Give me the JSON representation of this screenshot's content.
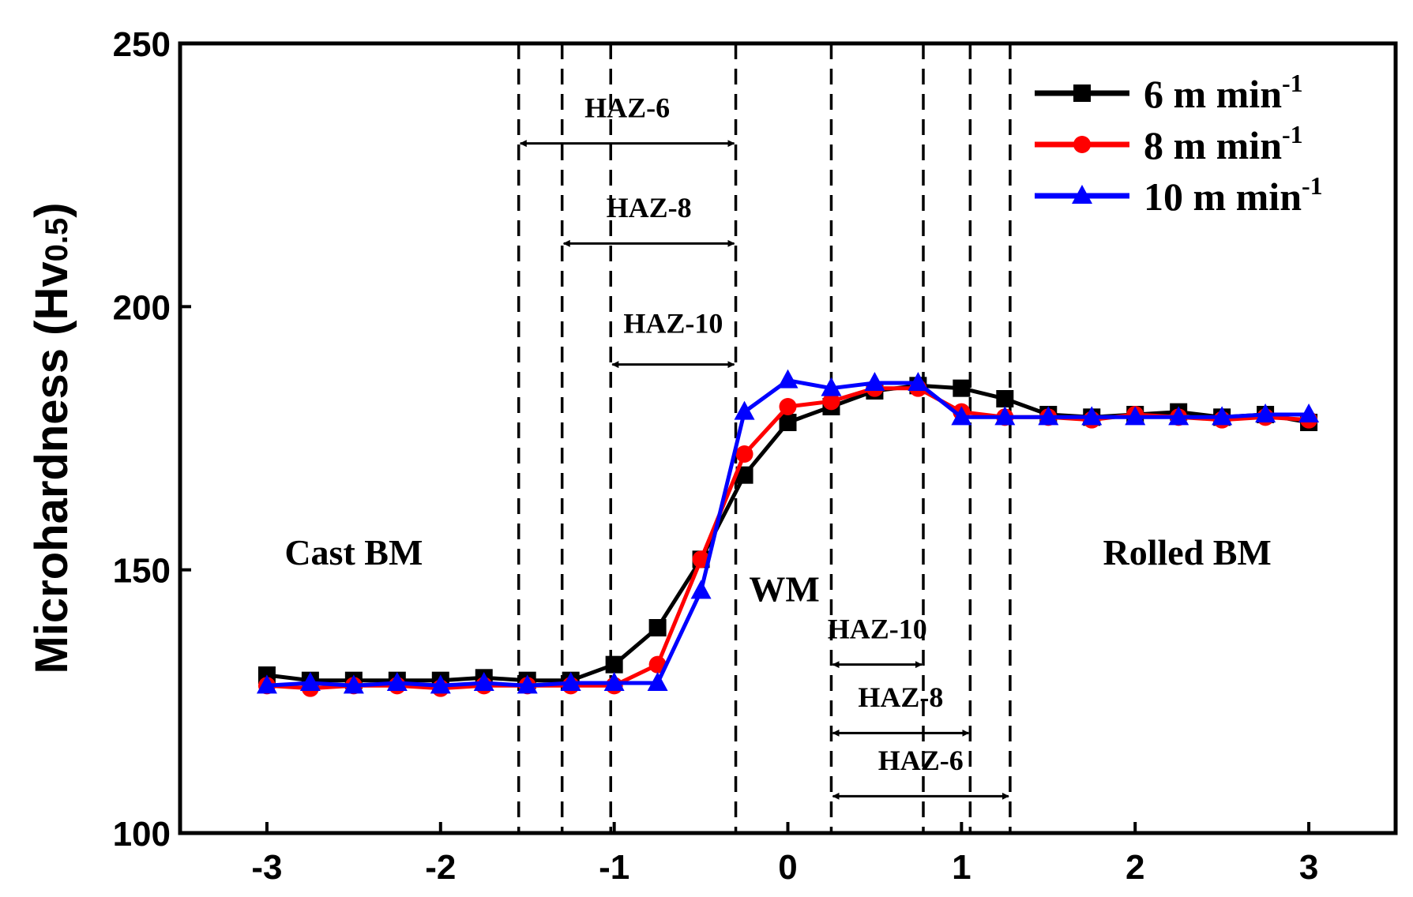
{
  "chart_data": {
    "type": "line",
    "title": "",
    "xlabel": "",
    "ylabel": "Microhardness (Hv",
    "ylabel_sub": "0.5",
    "ylabel_close": ")",
    "xlim": [
      -3.5,
      3.5
    ],
    "ylim": [
      100,
      250
    ],
    "x_ticks": [
      -3,
      -2,
      -1,
      0,
      1,
      2,
      3
    ],
    "y_ticks": [
      100,
      150,
      200,
      250
    ],
    "x_tick_labels": [
      "-3",
      "-2",
      "-1",
      "0",
      "1",
      "2",
      "3"
    ],
    "y_tick_labels": [
      "100",
      "150",
      "200",
      "250"
    ],
    "grid": false,
    "legend_position": "top-right",
    "series": [
      {
        "name": "6 m min",
        "name_sup": "-1",
        "color": "#000000",
        "marker": "square",
        "x": [
          -3,
          -2.75,
          -2.5,
          -2.25,
          -2,
          -1.75,
          -1.5,
          -1.25,
          -1,
          -0.75,
          -0.5,
          -0.25,
          0,
          0.25,
          0.5,
          0.75,
          1,
          1.25,
          1.5,
          1.75,
          2,
          2.25,
          2.5,
          2.75,
          3
        ],
        "y": [
          130,
          129,
          129,
          129,
          129,
          129.5,
          129,
          129,
          132,
          139,
          152,
          168,
          178,
          181,
          184,
          185,
          184.5,
          182.5,
          179.5,
          179,
          179.5,
          180,
          179,
          179.5,
          178
        ]
      },
      {
        "name": "8 m min",
        "name_sup": "-1",
        "color": "#ff0000",
        "marker": "circle",
        "x": [
          -3,
          -2.75,
          -2.5,
          -2.25,
          -2,
          -1.75,
          -1.5,
          -1.25,
          -1,
          -0.75,
          -0.5,
          -0.25,
          0,
          0.25,
          0.5,
          0.75,
          1,
          1.25,
          1.5,
          1.75,
          2,
          2.25,
          2.5,
          2.75,
          3
        ],
        "y": [
          128,
          127.5,
          128,
          128,
          127.5,
          128,
          128,
          128,
          128,
          132,
          152,
          172,
          181,
          182,
          184.5,
          184.5,
          180,
          179,
          179,
          178.5,
          179.5,
          179,
          178.5,
          179,
          178.5
        ]
      },
      {
        "name": "10 m min",
        "name_sup": "-1",
        "color": "#0000ff",
        "marker": "triangle",
        "x": [
          -3,
          -2.75,
          -2.5,
          -2.25,
          -2,
          -1.75,
          -1.5,
          -1.25,
          -1,
          -0.75,
          -0.5,
          -0.25,
          0,
          0.25,
          0.5,
          0.75,
          1,
          1.25,
          1.5,
          1.75,
          2,
          2.25,
          2.5,
          2.75,
          3
        ],
        "y": [
          128,
          128.5,
          128,
          128.5,
          128,
          128.5,
          128,
          128.5,
          128.5,
          128.5,
          146,
          180,
          186,
          184.5,
          185.5,
          185.5,
          179,
          179,
          179,
          179,
          179,
          179,
          179,
          179.5,
          179.5
        ]
      }
    ],
    "vlines": [
      -1.55,
      -1.3,
      -1.02,
      -0.3,
      0.25,
      0.78,
      1.05,
      1.28
    ],
    "annotations": {
      "regions": [
        {
          "text": "Cast BM",
          "x": -2.5,
          "y": 151
        },
        {
          "text": "WM",
          "x": -0.02,
          "y": 144
        },
        {
          "text": "Rolled BM",
          "x": 2.3,
          "y": 151
        }
      ],
      "haz_left": [
        {
          "text": "HAZ-6",
          "x1": -1.55,
          "x2": -0.3,
          "arrow_y": 231,
          "label_y": 236
        },
        {
          "text": "HAZ-8",
          "x1": -1.3,
          "x2": -0.3,
          "arrow_y": 212,
          "label_y": 217
        },
        {
          "text": "HAZ-10",
          "x1": -1.02,
          "x2": -0.3,
          "arrow_y": 189,
          "label_y": 195
        }
      ],
      "haz_right": [
        {
          "text": "HAZ-10",
          "x1": 0.25,
          "x2": 0.78,
          "arrow_y": 132,
          "label_y": 137
        },
        {
          "text": "HAZ-8",
          "x1": 0.25,
          "x2": 1.05,
          "arrow_y": 119,
          "label_y": 124
        },
        {
          "text": "HAZ-6",
          "x1": 0.25,
          "x2": 1.28,
          "arrow_y": 107,
          "label_y": 112
        }
      ]
    }
  }
}
